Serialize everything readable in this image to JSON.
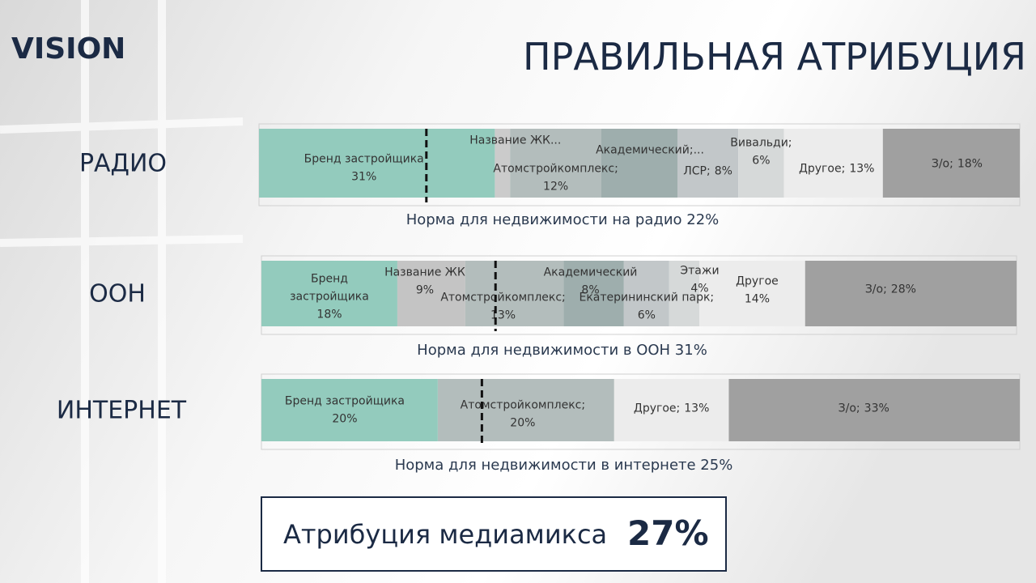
{
  "logo": "VISION",
  "title": "ПРАВИЛЬНАЯ АТРИБУЦИЯ",
  "summary": {
    "text": "Атрибуция медиамикса",
    "value": "27%"
  },
  "chart_data": [
    {
      "type": "stacked_bar",
      "title": "РАДИО",
      "xlim": [
        0,
        100
      ],
      "norm": 22,
      "norm_label": "Норма для недвижимости на радио 22%",
      "series": [
        {
          "name": "Бренд застройщика",
          "color": "#93cbbd",
          "values": [
            31
          ],
          "value_labels": [
            "31%"
          ]
        },
        {
          "name": "Название ЖК...",
          "color": "#cbcbcb",
          "values": [
            2
          ],
          "value_labels": [
            null
          ]
        },
        {
          "name": "Атомстройкомплекс;",
          "color": "#b3bdbc",
          "values": [
            12
          ],
          "value_labels": [
            "12%"
          ]
        },
        {
          "name": "Академический;...",
          "color": "#9eaead",
          "values": [
            10
          ],
          "value_labels": [
            null
          ]
        },
        {
          "name": "ЛСР;",
          "color": "#c2c7c9",
          "values": [
            8
          ],
          "value_labels": [
            "8%"
          ]
        },
        {
          "name": "Вивальди;",
          "color": "#d6d9d9",
          "values": [
            6
          ],
          "value_labels": [
            "6%"
          ]
        },
        {
          "name": "Другое;",
          "color": "#ececec",
          "values": [
            13
          ],
          "value_labels": [
            "13%"
          ]
        },
        {
          "name": "З/о;",
          "color": "#a0a0a0",
          "values": [
            18
          ],
          "value_labels": [
            "18%"
          ]
        }
      ]
    },
    {
      "type": "stacked_bar",
      "title": "ООН",
      "xlim": [
        0,
        100
      ],
      "norm": 31,
      "norm_label": "Норма для недвижимости в ООН 31%",
      "series": [
        {
          "name": "Бренд застройщика",
          "color": "#93cbbd",
          "values": [
            18
          ],
          "value_labels": [
            "18%"
          ]
        },
        {
          "name": "Название ЖК",
          "color": "#c4c4c4",
          "values": [
            9
          ],
          "value_labels": [
            "9%"
          ]
        },
        {
          "name": "Атомстройкомплекс;",
          "color": "#b3bdbc",
          "values": [
            13
          ],
          "value_labels": [
            "13%"
          ]
        },
        {
          "name": "Академический",
          "color": "#9eaead",
          "values": [
            8
          ],
          "value_labels": [
            "8%"
          ]
        },
        {
          "name": "Екатерининский парк;",
          "color": "#c2c7c9",
          "values": [
            6
          ],
          "value_labels": [
            "6%"
          ]
        },
        {
          "name": "Этажи",
          "color": "#d6d9d9",
          "values": [
            4
          ],
          "value_labels": [
            "4%"
          ]
        },
        {
          "name": "Другое",
          "color": "#ececec",
          "values": [
            14
          ],
          "value_labels": [
            "14%"
          ]
        },
        {
          "name": "З/о;",
          "color": "#a0a0a0",
          "values": [
            28
          ],
          "value_labels": [
            "28%"
          ]
        }
      ]
    },
    {
      "type": "stacked_bar",
      "title": "ИНТЕРНЕТ",
      "xlim": [
        0,
        86
      ],
      "norm": 25,
      "norm_label": "Норма для недвижимости в интернете 25%",
      "series": [
        {
          "name": "Бренд застройщика",
          "color": "#93cbbd",
          "values": [
            20
          ],
          "value_labels": [
            "20%"
          ]
        },
        {
          "name": "Атомстройкомплекс;",
          "color": "#b3bdbc",
          "values": [
            20
          ],
          "value_labels": [
            "20%"
          ]
        },
        {
          "name": "Другое;",
          "color": "#ececec",
          "values": [
            13
          ],
          "value_labels": [
            "13%"
          ]
        },
        {
          "name": "З/о;",
          "color": "#a0a0a0",
          "values": [
            33
          ],
          "value_labels": [
            "33%"
          ]
        }
      ]
    }
  ]
}
